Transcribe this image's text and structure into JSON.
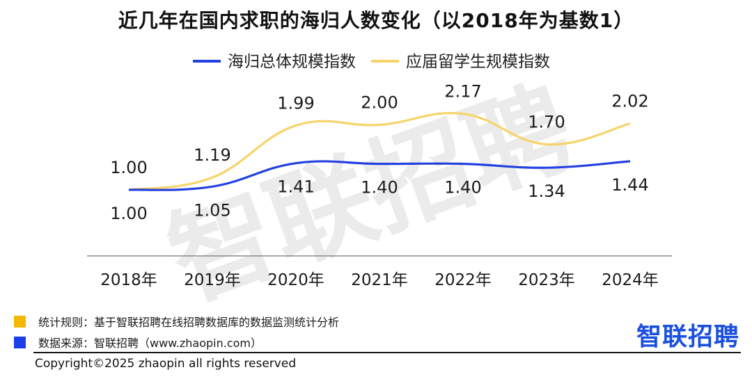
{
  "title": "近几年在国内求职的海归人数变化（以2018年为基数1）",
  "chart_data": {
    "type": "line",
    "title": "近几年在国内求职的海归人数变化（以2018年为基数1）",
    "categories": [
      "2018年",
      "2019年",
      "2020年",
      "2021年",
      "2022年",
      "2023年",
      "2024年"
    ],
    "series": [
      {
        "name": "海归总体规模指数",
        "color": "#2340e0",
        "values": [
          1.0,
          1.05,
          1.41,
          1.4,
          1.4,
          1.34,
          1.44
        ]
      },
      {
        "name": "应届留学生规模指数",
        "color": "#f7d46a",
        "values": [
          1.0,
          1.19,
          1.99,
          2.0,
          2.17,
          1.7,
          2.02
        ]
      }
    ],
    "value_labels": {
      "overall": [
        "1.00",
        "1.05",
        "1.41",
        "1.40",
        "1.40",
        "1.34",
        "1.44"
      ],
      "fresh": [
        "1.00",
        "1.19",
        "1.99",
        "2.00",
        "2.17",
        "1.70",
        "2.02"
      ]
    },
    "ylim": [
      0.0,
      2.6
    ],
    "grid": false,
    "legend_position": "top"
  },
  "watermark": "智联招聘",
  "notes": {
    "rule": "统计规则：基于智联招聘在线招聘数据库的数据监测统计分析",
    "rule_color": "#f5b800",
    "source": "数据来源：智联招聘（www.zhaopin.com）",
    "source_color": "#1b3fe6"
  },
  "logo": "智联招聘",
  "copyright": "Copyright©2025 zhaopin all rights reserved"
}
